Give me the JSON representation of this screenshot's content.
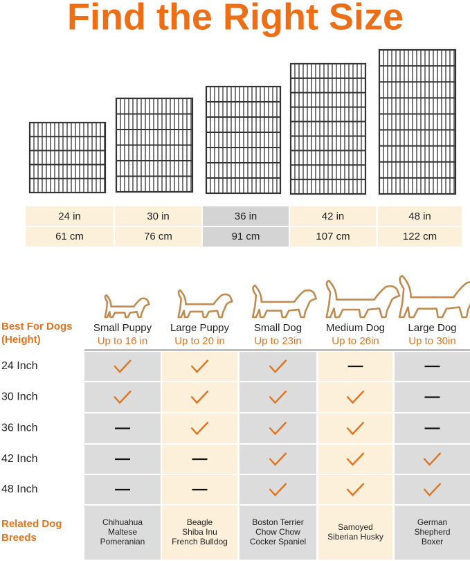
{
  "title": "Find the Right Size",
  "sizes": [
    {
      "in": "24 in",
      "cm": "61 cm"
    },
    {
      "in": "30 in",
      "cm": "76 cm"
    },
    {
      "in": "36 in",
      "cm": "91 cm"
    },
    {
      "in": "42 in",
      "cm": "107 cm"
    },
    {
      "in": "48 in",
      "cm": "122 cm"
    }
  ],
  "table": {
    "header_label": [
      "Best For Dogs",
      "(Height)"
    ],
    "dogs": [
      {
        "name": "Small Puppy",
        "height": "Up to 16 in"
      },
      {
        "name": "Large Puppy",
        "height": "Up to 20 in"
      },
      {
        "name": "Small Dog",
        "height": "Up to 23in"
      },
      {
        "name": "Medium Dog",
        "height": "Up to 26in"
      },
      {
        "name": "Large Dog",
        "height": "Up to 30in"
      }
    ],
    "rows": [
      {
        "label": "24 Inch",
        "fits": [
          true,
          true,
          true,
          false,
          false
        ]
      },
      {
        "label": "30 Inch",
        "fits": [
          true,
          true,
          true,
          true,
          false
        ]
      },
      {
        "label": "36 Inch",
        "fits": [
          false,
          true,
          true,
          true,
          false
        ]
      },
      {
        "label": "42 Inch",
        "fits": [
          false,
          false,
          true,
          true,
          true
        ]
      },
      {
        "label": "48 Inch",
        "fits": [
          false,
          false,
          true,
          true,
          true
        ]
      }
    ],
    "breeds_label": [
      "Related Dog",
      "Breeds"
    ],
    "breeds": [
      [
        "Chihuahua",
        "Maltese",
        "Pomeranian"
      ],
      [
        "Beagle",
        "Shiba Inu",
        "French Bulldog"
      ],
      [
        "Boston Terrier",
        "Chow Chow",
        "Cocker Spaniel"
      ],
      [
        "Samoyed",
        "Siberian Husky"
      ],
      [
        "German",
        "Shepherd",
        "Boxer"
      ]
    ]
  }
}
